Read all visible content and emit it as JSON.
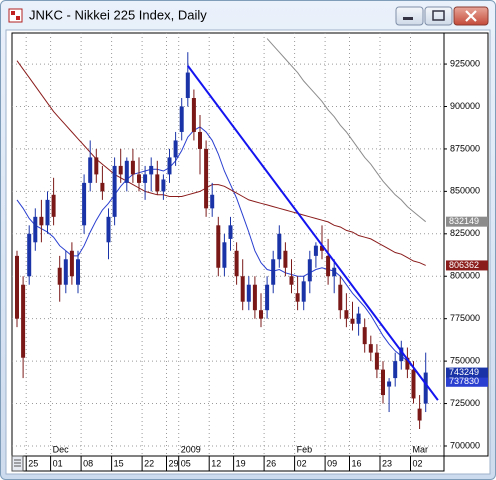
{
  "window": {
    "title": "JNKC - Nikkei 225 Index, Daily"
  },
  "chart_data": {
    "type": "candlestick",
    "categories": [
      null,
      null,
      "25",
      null,
      null,
      null,
      "01",
      null,
      null,
      null,
      null,
      "08",
      null,
      null,
      null,
      null,
      "15",
      null,
      null,
      null,
      null,
      "22",
      null,
      null,
      null,
      "29",
      null,
      "05",
      null,
      null,
      null,
      null,
      "12",
      null,
      null,
      null,
      "19",
      null,
      null,
      null,
      null,
      "26",
      null,
      null,
      null,
      null,
      "02",
      null,
      null,
      null,
      null,
      "09",
      null,
      null,
      null,
      "16",
      null,
      null,
      null,
      null,
      "23",
      null,
      null,
      null,
      null,
      "02",
      null,
      null
    ],
    "month_labels": [
      null,
      null,
      null,
      null,
      null,
      null,
      "Dec",
      null,
      null,
      null,
      null,
      null,
      null,
      null,
      null,
      null,
      null,
      null,
      null,
      null,
      null,
      null,
      null,
      null,
      null,
      null,
      null,
      "2009",
      null,
      null,
      null,
      null,
      null,
      null,
      null,
      null,
      null,
      null,
      null,
      null,
      null,
      null,
      null,
      null,
      null,
      null,
      "Feb",
      null,
      null,
      null,
      null,
      null,
      null,
      null,
      null,
      null,
      null,
      null,
      null,
      null,
      null,
      null,
      null,
      null,
      null,
      "Mar",
      null,
      null
    ],
    "open": [
      812000,
      795000,
      800000,
      820000,
      835000,
      830000,
      848000,
      805000,
      795000,
      815000,
      795000,
      830000,
      855000,
      870000,
      855000,
      820000,
      835000,
      865000,
      855000,
      868000,
      860000,
      855000,
      860000,
      860000,
      850000,
      860000,
      870000,
      885000,
      905000,
      905000,
      885000,
      875000,
      840000,
      830000,
      805000,
      822000,
      815000,
      800000,
      785000,
      795000,
      780000,
      780000,
      795000,
      810000,
      815000,
      800000,
      790000,
      785000,
      797000,
      812000,
      818000,
      812000,
      800000,
      795000,
      780000,
      775000,
      772000,
      770000,
      760000,
      755000,
      745000,
      735000,
      740000,
      750000,
      752000,
      745000,
      722000,
      725000
    ],
    "high": [
      815000,
      800000,
      830000,
      840000,
      845000,
      850000,
      858000,
      812000,
      815000,
      820000,
      815000,
      860000,
      880000,
      875000,
      865000,
      840000,
      870000,
      875000,
      870000,
      875000,
      870000,
      865000,
      870000,
      868000,
      860000,
      875000,
      885000,
      905000,
      932000,
      910000,
      895000,
      880000,
      855000,
      835000,
      825000,
      835000,
      820000,
      810000,
      800000,
      800000,
      790000,
      800000,
      815000,
      830000,
      820000,
      810000,
      800000,
      800000,
      815000,
      820000,
      830000,
      822000,
      810000,
      800000,
      790000,
      785000,
      782000,
      775000,
      765000,
      760000,
      750000,
      740000,
      755000,
      762000,
      758000,
      750000,
      730000,
      755000
    ],
    "low": [
      770000,
      740000,
      795000,
      815000,
      820000,
      825000,
      830000,
      785000,
      790000,
      795000,
      790000,
      825000,
      850000,
      855000,
      845000,
      810000,
      830000,
      855000,
      850000,
      855000,
      850000,
      845000,
      850000,
      848000,
      845000,
      855000,
      865000,
      880000,
      900000,
      880000,
      860000,
      835000,
      835000,
      800000,
      800000,
      815000,
      795000,
      780000,
      780000,
      775000,
      770000,
      775000,
      790000,
      805000,
      800000,
      790000,
      780000,
      780000,
      790000,
      805000,
      810000,
      795000,
      790000,
      775000,
      770000,
      768000,
      765000,
      755000,
      750000,
      740000,
      725000,
      720000,
      735000,
      745000,
      740000,
      725000,
      710000,
      720000
    ],
    "close": [
      775000,
      752000,
      825000,
      835000,
      830000,
      845000,
      835000,
      795000,
      810000,
      800000,
      810000,
      855000,
      870000,
      860000,
      850000,
      835000,
      865000,
      860000,
      868000,
      860000,
      855000,
      860000,
      865000,
      850000,
      857000,
      870000,
      880000,
      900000,
      920000,
      885000,
      875000,
      840000,
      848000,
      805000,
      820000,
      830000,
      800000,
      785000,
      795000,
      780000,
      775000,
      795000,
      810000,
      825000,
      805000,
      795000,
      785000,
      797000,
      810000,
      818000,
      815000,
      800000,
      805000,
      780000,
      775000,
      772000,
      778000,
      760000,
      755000,
      745000,
      730000,
      738000,
      750000,
      758000,
      745000,
      728000,
      715000,
      743249
    ],
    "up_color": "#1a34a8",
    "down_color": "#7a1818",
    "series": [
      {
        "color": "#2a3fd0",
        "values": [
          845000,
          840000,
          834000,
          830000,
          828000,
          826000,
          823000,
          818000,
          815000,
          812000,
          812000,
          818000,
          826000,
          833000,
          839000,
          843000,
          848000,
          853000,
          857000,
          860000,
          861000,
          862000,
          863000,
          863000,
          862000,
          864000,
          868000,
          874000,
          882000,
          886000,
          888000,
          885000,
          880000,
          872000,
          862000,
          854000,
          846000,
          836000,
          826000,
          815000,
          808000,
          804000,
          803000,
          804000,
          802000,
          801000,
          800000,
          800000,
          802000,
          804000,
          805000,
          804000,
          803000,
          800000,
          795000,
          790000,
          786000,
          782000,
          777000,
          771000,
          765000,
          760000,
          756000,
          753000,
          750000,
          746000,
          741000,
          737830
        ]
      },
      {
        "color": "#8b1c1c",
        "values": [
          927000,
          922000,
          917000,
          912000,
          907000,
          902000,
          897000,
          893000,
          889000,
          885000,
          881000,
          877000,
          873000,
          869000,
          866000,
          863000,
          860000,
          858000,
          856000,
          854000,
          852000,
          850000,
          849000,
          848000,
          848000,
          847000,
          847000,
          847000,
          848000,
          849000,
          850000,
          852000,
          854000,
          854000,
          853000,
          851000,
          849000,
          847000,
          845000,
          844000,
          843000,
          842000,
          841000,
          840000,
          839000,
          838000,
          837000,
          836000,
          835000,
          834000,
          833000,
          832000,
          830000,
          829000,
          827000,
          826000,
          824000,
          823000,
          822000,
          820000,
          818000,
          816000,
          814000,
          813000,
          811000,
          809000,
          808000,
          806362
        ]
      },
      {
        "color": "#8c8c8c",
        "values": [
          null,
          null,
          null,
          null,
          null,
          null,
          null,
          null,
          null,
          null,
          null,
          null,
          null,
          null,
          null,
          null,
          null,
          null,
          null,
          null,
          null,
          null,
          null,
          null,
          null,
          null,
          null,
          null,
          null,
          null,
          null,
          null,
          null,
          null,
          null,
          null,
          null,
          null,
          null,
          null,
          null,
          940000,
          936000,
          932000,
          928000,
          924000,
          920000,
          915000,
          911000,
          907000,
          903000,
          898000,
          894000,
          889000,
          885000,
          880000,
          875000,
          870000,
          866000,
          861000,
          856000,
          852000,
          848000,
          845000,
          841000,
          838000,
          835000,
          832149
        ]
      }
    ],
    "trendline": {
      "color": "#1414f0",
      "x": [
        28,
        69
      ],
      "values": [
        924000,
        727000
      ]
    },
    "ylim": [
      694100,
      943300
    ],
    "yticks": [
      700000,
      725000,
      750000,
      775000,
      800000,
      825000,
      850000,
      875000,
      900000,
      925000
    ],
    "grid": true
  }
}
